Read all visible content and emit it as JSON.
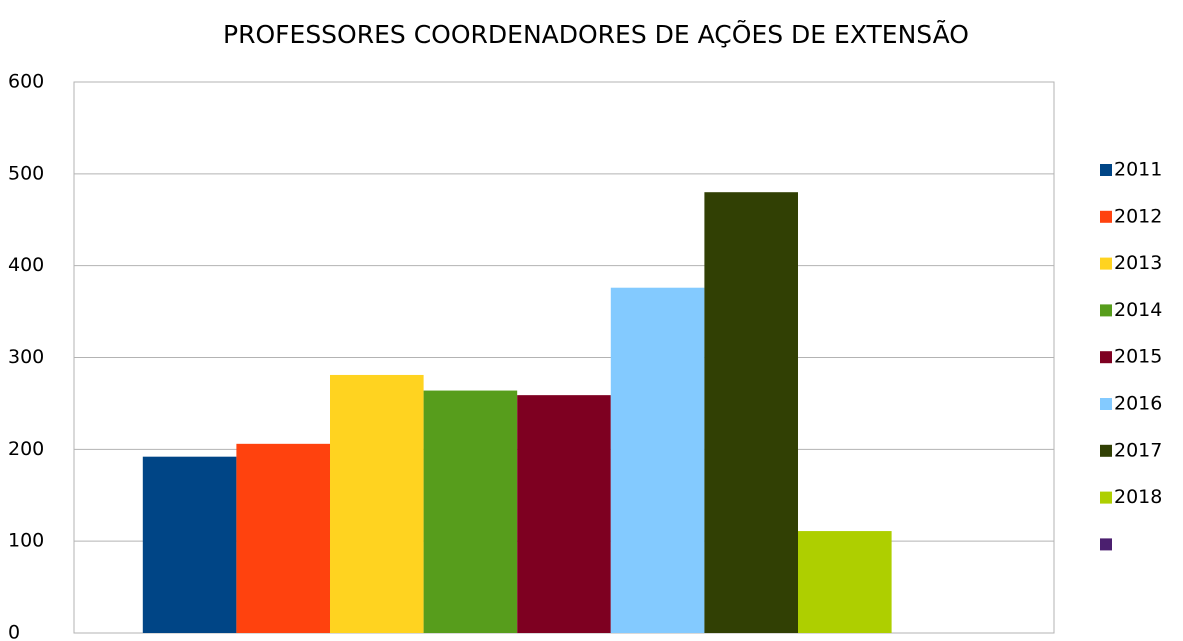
{
  "chart_data": {
    "type": "bar",
    "title": "PROFESSORES COORDENADORES DE AÇÕES DE EXTENSÃO",
    "categories": [
      null
    ],
    "series": [
      {
        "name": "2011",
        "color": "#004586",
        "values": [
          192
        ]
      },
      {
        "name": "2012",
        "color": "#ff420e",
        "values": [
          206
        ]
      },
      {
        "name": "2013",
        "color": "#ffd320",
        "values": [
          281
        ]
      },
      {
        "name": "2014",
        "color": "#579d1c",
        "values": [
          264
        ]
      },
      {
        "name": "2015",
        "color": "#7e0021",
        "values": [
          259
        ]
      },
      {
        "name": "2016",
        "color": "#83caff",
        "values": [
          376
        ]
      },
      {
        "name": "2017",
        "color": "#314004",
        "values": [
          480
        ]
      },
      {
        "name": "2018",
        "color": "#aecf00",
        "values": [
          111
        ]
      },
      {
        "name": null,
        "color": "#4b1f6f",
        "values": [
          null
        ]
      }
    ],
    "ylim": [
      0,
      600
    ],
    "yticks": [
      0,
      100,
      200,
      300,
      400,
      500,
      600
    ],
    "grid": true,
    "legend": "right"
  }
}
